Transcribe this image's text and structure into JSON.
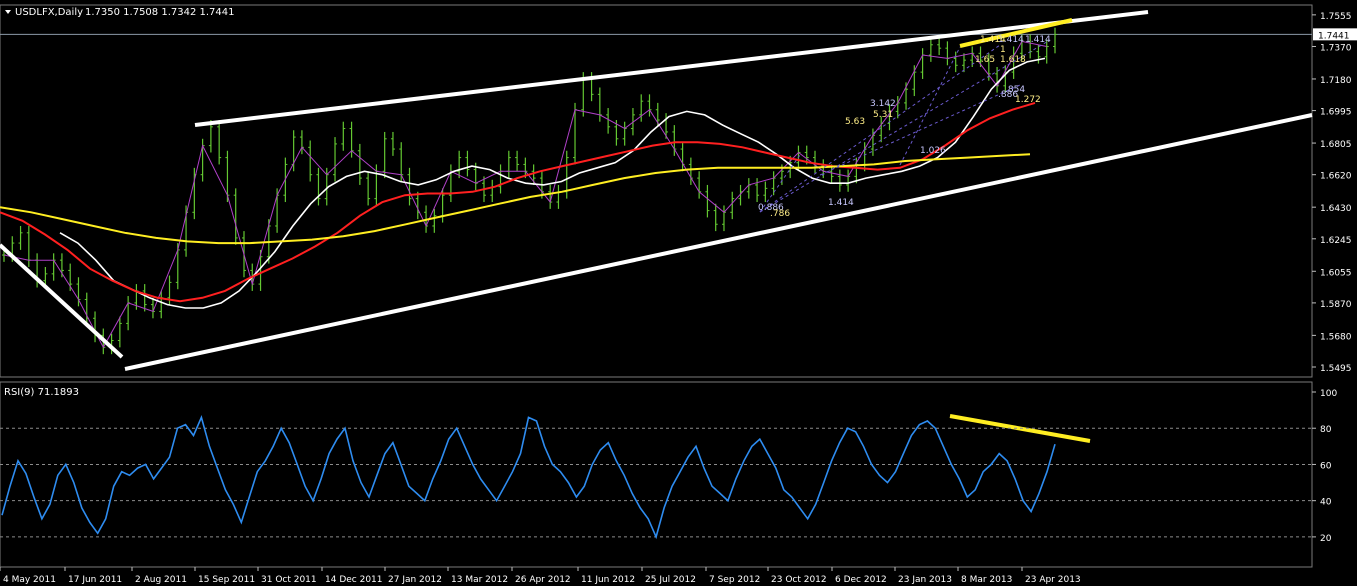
{
  "header": {
    "symbol_label": "USDLFX,Daily",
    "ohlc": "1.7350 1.7508 1.7342 1.7441"
  },
  "rsi_panel": {
    "label": "RSI(9) 71.1893"
  },
  "chart_data": [
    {
      "type": "line",
      "name": "USDLFX Daily price",
      "ylim": [
        1.5495,
        1.756
      ],
      "yticks": [
        "1.7555",
        "1.7370",
        "1.7180",
        "1.6995",
        "1.6805",
        "1.6620",
        "1.6430",
        "1.6245",
        "1.6055",
        "1.5870",
        "1.5680",
        "1.5495"
      ],
      "ytick_values": [
        1.7555,
        1.737,
        1.718,
        1.6995,
        1.6805,
        1.662,
        1.643,
        1.6245,
        1.6055,
        1.587,
        1.568,
        1.5495
      ],
      "current_price": "1.7441",
      "xticks": [
        "4 May 2011",
        "17 Jun 2011",
        "2 Aug 2011",
        "15 Sep 2011",
        "31 Oct 2011",
        "14 Dec 2011",
        "27 Jan 2012",
        "13 Mar 2012",
        "26 Apr 2012",
        "11 Jun 2012",
        "25 Jul 2012",
        "7 Sep 2012",
        "23 Oct 2012",
        "6 Dec 2012",
        "23 Jan 2013",
        "8 Mar 2013",
        "23 Apr 2013"
      ],
      "close": [
        1.615,
        1.622,
        1.628,
        1.612,
        1.6,
        1.604,
        1.612,
        1.606,
        1.598,
        1.589,
        1.578,
        1.568,
        1.561,
        1.565,
        1.575,
        1.587,
        1.594,
        1.586,
        1.582,
        1.59,
        1.599,
        1.618,
        1.64,
        1.662,
        1.679,
        1.69,
        1.672,
        1.65,
        1.625,
        1.606,
        1.598,
        1.614,
        1.632,
        1.65,
        1.668,
        1.684,
        1.678,
        1.662,
        1.648,
        1.662,
        1.68,
        1.689,
        1.676,
        1.66,
        1.648,
        1.664,
        1.683,
        1.677,
        1.662,
        1.648,
        1.64,
        1.632,
        1.638,
        1.65,
        1.664,
        1.672,
        1.665,
        1.657,
        1.65,
        1.655,
        1.664,
        1.672,
        1.668,
        1.664,
        1.66,
        1.652,
        1.646,
        1.652,
        1.672,
        1.7,
        1.718,
        1.709,
        1.697,
        1.69,
        1.683,
        1.689,
        1.697,
        1.705,
        1.7,
        1.694,
        1.687,
        1.677,
        1.668,
        1.66,
        1.652,
        1.641,
        1.633,
        1.64,
        1.648,
        1.652,
        1.656,
        1.65,
        1.654,
        1.66,
        1.664,
        1.669,
        1.675,
        1.672,
        1.667,
        1.664,
        1.661,
        1.656,
        1.661,
        1.668,
        1.677,
        1.685,
        1.692,
        1.699,
        1.704,
        1.712,
        1.722,
        1.732,
        1.738,
        1.736,
        1.73,
        1.726,
        1.729,
        1.733,
        1.729,
        1.721,
        1.714,
        1.722,
        1.733,
        1.74,
        1.734,
        1.731,
        1.737,
        1.744
      ],
      "series": [
        {
          "name": "",
          "color": "#ffffff",
          "values": [
            1.628,
            1.622,
            1.612,
            1.6,
            1.595,
            1.59,
            1.586,
            1.584,
            1.584,
            1.587,
            1.594,
            1.605,
            1.617,
            1.632,
            1.645,
            1.655,
            1.661,
            1.664,
            1.662,
            1.658,
            1.656,
            1.659,
            1.664,
            1.667,
            1.665,
            1.66,
            1.657,
            1.656,
            1.658,
            1.663,
            1.666,
            1.669,
            1.676,
            1.687,
            1.696,
            1.699,
            1.697,
            1.691,
            1.686,
            1.681,
            1.674,
            1.666,
            1.66,
            1.657,
            1.657,
            1.66,
            1.662,
            1.664,
            1.667,
            1.672,
            1.681,
            1.696,
            1.712,
            1.723,
            1.728,
            1.73
          ]
        },
        {
          "name": "",
          "color": "#ff2020",
          "values": [
            1.64,
            1.635,
            1.627,
            1.618,
            1.607,
            1.6,
            1.594,
            1.59,
            1.588,
            1.59,
            1.594,
            1.601,
            1.607,
            1.613,
            1.62,
            1.628,
            1.638,
            1.646,
            1.65,
            1.651,
            1.651,
            1.652,
            1.655,
            1.66,
            1.664,
            1.667,
            1.67,
            1.673,
            1.676,
            1.679,
            1.681,
            1.681,
            1.68,
            1.678,
            1.675,
            1.672,
            1.669,
            1.667,
            1.666,
            1.665,
            1.666,
            1.671,
            1.679,
            1.688,
            1.695,
            1.7,
            1.704
          ]
        },
        {
          "name": "",
          "color": "#ffee22",
          "values": [
            1.643,
            1.64,
            1.636,
            1.632,
            1.628,
            1.625,
            1.623,
            1.622,
            1.622,
            1.623,
            1.624,
            1.626,
            1.629,
            1.633,
            1.637,
            1.641,
            1.645,
            1.649,
            1.652,
            1.656,
            1.66,
            1.663,
            1.665,
            1.666,
            1.666,
            1.666,
            1.666,
            1.667,
            1.668,
            1.67,
            1.671,
            1.672,
            1.673,
            1.674
          ]
        }
      ],
      "trendlines_note": "hand-drawn",
      "annotations": [
        "0.886",
        ".786",
        "1.414",
        "5.63",
        "3.142",
        "5.31",
        "1.026",
        "1.618",
        "1.414",
        "1.65",
        ".886",
        "1.272",
        "1.414",
        "1.414",
        ".854",
        "1"
      ]
    },
    {
      "type": "line",
      "name": "RSI(9)",
      "ylim": [
        10,
        100
      ],
      "yticks": [
        "100",
        "80",
        "60",
        "40",
        "20"
      ],
      "ytick_values": [
        100,
        80,
        60,
        40,
        20
      ],
      "grid": [
        80,
        60,
        40,
        20
      ],
      "values": [
        32,
        48,
        62,
        55,
        42,
        30,
        38,
        54,
        60,
        50,
        36,
        28,
        22,
        30,
        48,
        56,
        54,
        58,
        60,
        52,
        58,
        64,
        80,
        82,
        76,
        86,
        70,
        58,
        46,
        38,
        28,
        42,
        56,
        62,
        70,
        80,
        72,
        60,
        48,
        40,
        52,
        66,
        74,
        80,
        62,
        50,
        42,
        54,
        66,
        72,
        60,
        48,
        44,
        40,
        52,
        62,
        74,
        80,
        70,
        60,
        52,
        46,
        40,
        48,
        56,
        66,
        86,
        84,
        70,
        60,
        56,
        50,
        42,
        48,
        60,
        68,
        72,
        62,
        54,
        44,
        36,
        30,
        20,
        36,
        48,
        56,
        64,
        70,
        58,
        48,
        44,
        40,
        52,
        62,
        70,
        74,
        66,
        58,
        46,
        42,
        36,
        30,
        38,
        50,
        62,
        72,
        80,
        78,
        70,
        60,
        54,
        50,
        56,
        66,
        76,
        82,
        84,
        80,
        70,
        60,
        52,
        42,
        46,
        56,
        60,
        66,
        62,
        52,
        40,
        34,
        44,
        56,
        71.19
      ]
    }
  ]
}
